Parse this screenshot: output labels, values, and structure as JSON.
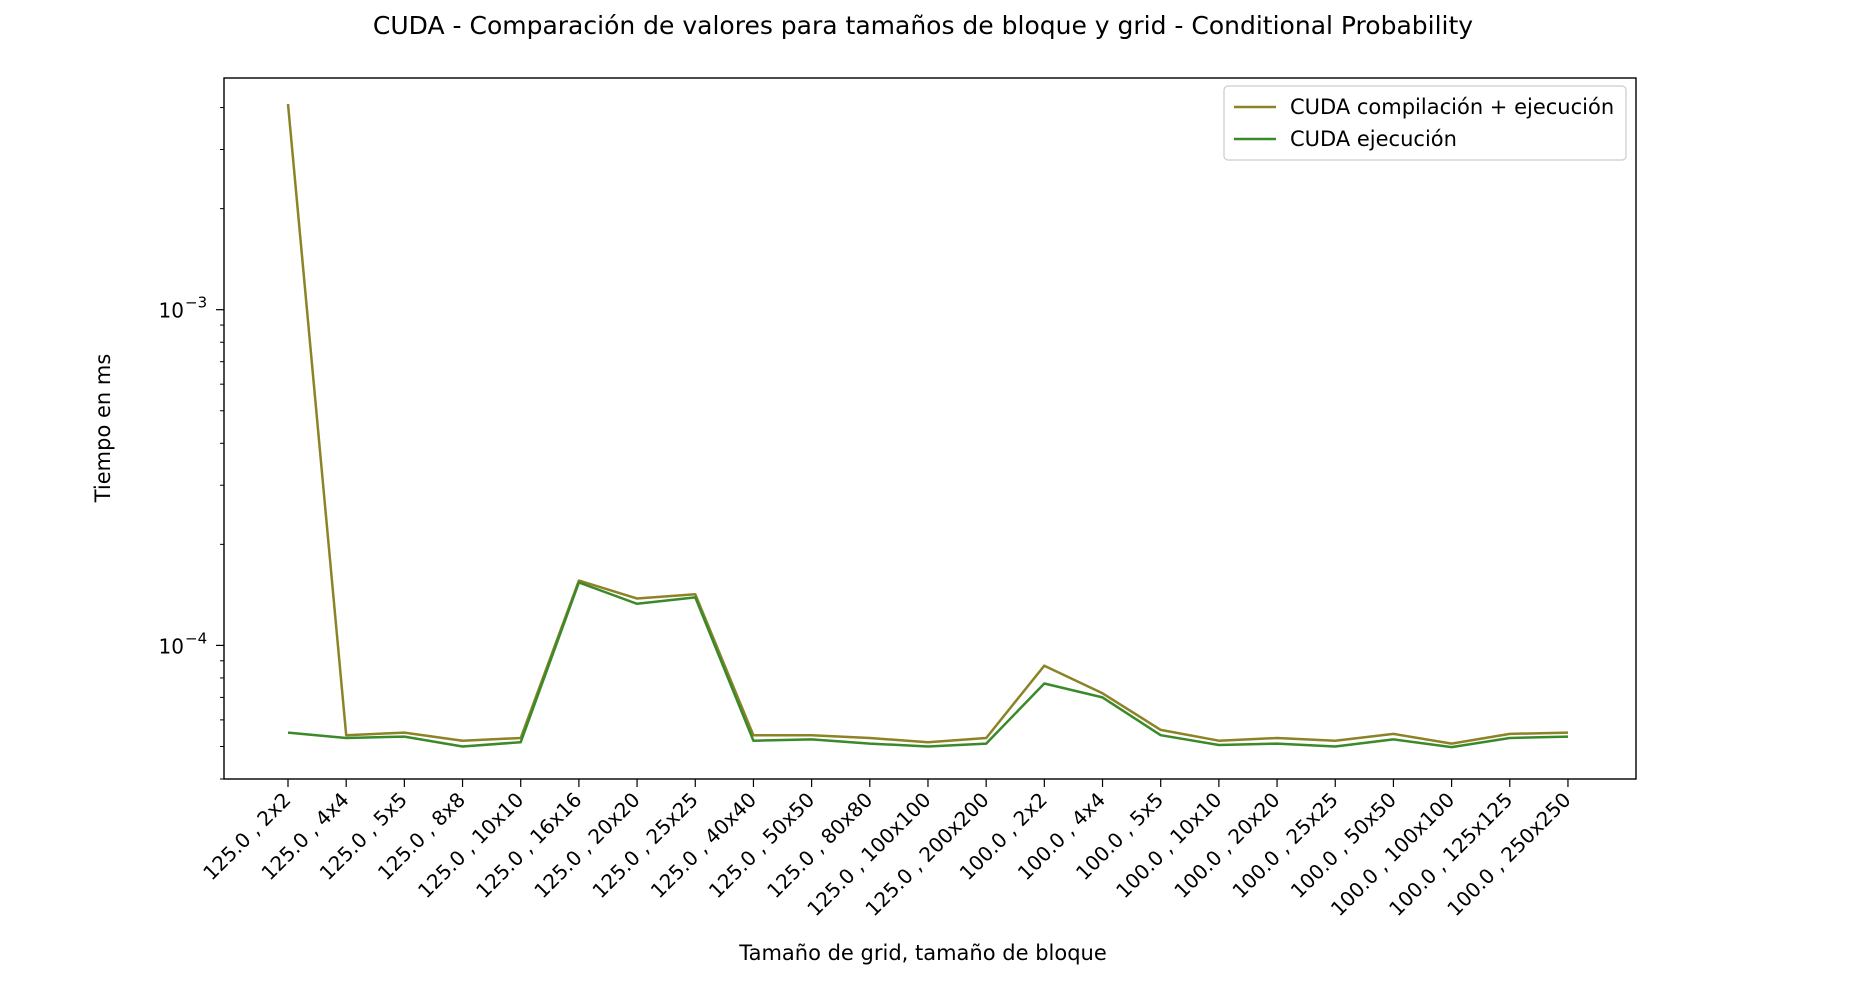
{
  "chart_data": {
    "type": "line",
    "title": "CUDA - Comparación de valores para tamaños de bloque y grid - Conditional Probability",
    "xlabel": "Tamaño de grid, tamaño de bloque",
    "ylabel": "Tiempo en ms",
    "y_scale": "log",
    "ylim": [
      4e-05,
      0.0049
    ],
    "grid": false,
    "legend_position": "top-right",
    "y_ticks": [
      {
        "value": 0.001,
        "label_base": "10",
        "label_exp": "−3"
      },
      {
        "value": 0.0001,
        "label_base": "10",
        "label_exp": "−4"
      }
    ],
    "categories": [
      "125.0 , 2x2",
      "125.0 , 4x4",
      "125.0 , 5x5",
      "125.0 , 8x8",
      "125.0 , 10x10",
      "125.0 , 16x16",
      "125.0 , 20x20",
      "125.0 , 25x25",
      "125.0 , 40x40",
      "125.0 , 50x50",
      "125.0 , 80x80",
      "125.0 , 100x100",
      "125.0 , 200x200",
      "100.0 , 2x2",
      "100.0 , 4x4",
      "100.0 , 5x5",
      "100.0 , 10x10",
      "100.0 , 20x20",
      "100.0 , 25x25",
      "100.0 , 50x50",
      "100.0 , 100x100",
      "100.0 , 125x125",
      "100.0 , 250x250"
    ],
    "series": [
      {
        "name": "CUDA compilación + ejecución",
        "color": "#8b8326",
        "values": [
          0.0041,
          5.4e-05,
          5.5e-05,
          5.2e-05,
          5.3e-05,
          0.000156,
          0.000138,
          0.000142,
          5.4e-05,
          5.4e-05,
          5.3e-05,
          5.15e-05,
          5.3e-05,
          8.7e-05,
          7.2e-05,
          5.6e-05,
          5.2e-05,
          5.3e-05,
          5.2e-05,
          5.45e-05,
          5.1e-05,
          5.45e-05,
          5.5e-05
        ]
      },
      {
        "name": "CUDA ejecución",
        "color": "#3a8a2a",
        "values": [
          5.5e-05,
          5.3e-05,
          5.35e-05,
          5e-05,
          5.15e-05,
          0.000154,
          0.000133,
          0.000139,
          5.2e-05,
          5.25e-05,
          5.1e-05,
          5e-05,
          5.1e-05,
          7.7e-05,
          7e-05,
          5.4e-05,
          5.05e-05,
          5.1e-05,
          5e-05,
          5.25e-05,
          4.98e-05,
          5.3e-05,
          5.35e-05
        ]
      }
    ]
  }
}
